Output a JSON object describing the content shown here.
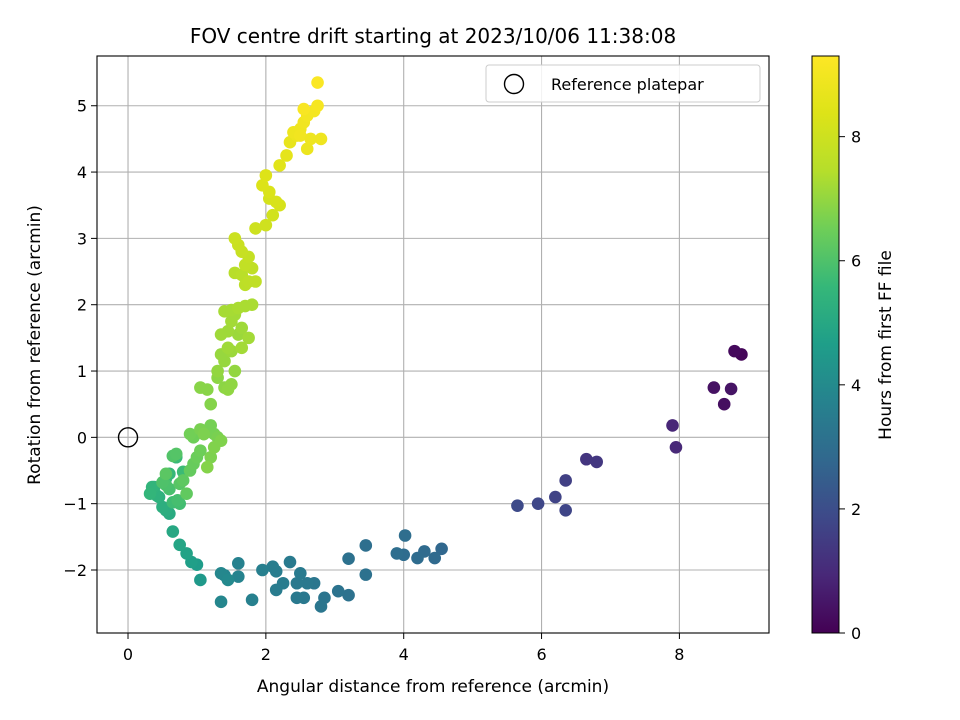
{
  "chart_data": {
    "type": "scatter",
    "title": "FOV centre drift starting at 2023/10/06 11:38:08",
    "xlabel": "Angular distance from reference (arcmin)",
    "ylabel": "Rotation from reference (arcmin)",
    "xlim": [
      -0.45,
      9.3
    ],
    "ylim": [
      -2.95,
      5.75
    ],
    "xticks": [
      0,
      2,
      4,
      6,
      8
    ],
    "yticks": [
      -2,
      -1,
      0,
      1,
      2,
      3,
      4,
      5
    ],
    "grid": true,
    "legend": {
      "placement": "top-right",
      "entries": [
        "Reference platepar"
      ]
    },
    "reference_point": {
      "x": 0,
      "y": 0,
      "label": "Reference platepar"
    },
    "colorbar": {
      "label": "Hours from first FF file",
      "range": [
        0,
        9.3
      ],
      "ticks": [
        0,
        2,
        4,
        6,
        8
      ],
      "colormap": "viridis"
    },
    "series": [
      {
        "x": [
          8.9,
          8.8,
          8.5,
          8.75,
          8.65,
          7.9,
          7.95,
          6.65,
          6.8,
          6.35,
          6.2,
          5.95,
          5.65,
          6.35,
          4.55,
          4.45,
          4.3,
          4.2,
          4.0,
          3.9,
          4.02,
          3.45,
          3.2,
          3.45,
          3.2,
          3.05,
          2.85,
          2.8,
          2.7,
          2.6,
          2.55,
          2.45,
          2.45,
          2.5,
          2.35,
          2.25,
          2.15,
          2.15,
          2.1,
          1.95,
          1.8,
          1.6,
          1.6,
          1.4,
          1.35,
          1.35,
          1.45,
          1.05,
          1.0,
          0.92,
          0.85,
          0.75,
          0.65,
          0.6,
          0.55,
          0.5,
          0.45,
          0.42,
          0.38,
          0.35,
          0.32,
          0.55,
          0.6,
          0.7,
          0.8,
          0.65,
          0.75,
          0.72,
          0.6,
          0.55,
          0.5,
          0.65,
          0.7,
          0.75,
          0.55,
          0.8,
          0.85,
          0.9,
          0.95,
          1.0,
          1.05,
          0.95,
          0.9,
          1.1,
          1.2,
          1.25,
          1.3,
          1.05,
          1.1,
          1.2,
          1.25,
          1.35,
          1.15,
          1.2,
          1.05,
          1.15,
          1.3,
          1.4,
          1.45,
          1.5,
          1.55,
          1.3,
          1.4,
          1.35,
          1.5,
          1.6,
          1.65,
          1.45,
          1.5,
          1.55,
          1.4,
          1.5,
          1.6,
          1.7,
          1.8,
          1.75,
          1.65,
          1.45,
          1.35,
          1.55,
          1.65,
          1.7,
          1.75,
          1.8,
          1.85,
          1.7,
          1.75,
          1.65,
          1.6,
          1.55,
          1.85,
          2.0,
          2.1,
          2.05,
          2.2,
          2.15,
          2.05,
          1.95,
          2.0,
          2.2,
          2.3,
          2.35,
          2.45,
          2.4,
          2.5,
          2.55,
          2.6,
          2.7,
          2.75,
          2.8,
          2.5,
          2.6,
          2.65,
          2.55,
          2.75
        ],
        "y": [
          1.25,
          1.3,
          0.75,
          0.73,
          0.5,
          0.18,
          -0.15,
          -0.33,
          -0.37,
          -0.65,
          -0.9,
          -1.0,
          -1.03,
          -1.1,
          -1.68,
          -1.82,
          -1.72,
          -1.82,
          -1.77,
          -1.75,
          -1.48,
          -1.63,
          -1.83,
          -2.07,
          -2.38,
          -2.32,
          -2.42,
          -2.55,
          -2.2,
          -2.2,
          -2.42,
          -2.42,
          -2.2,
          -2.05,
          -1.88,
          -2.2,
          -2.3,
          -2.02,
          -1.95,
          -2.0,
          -2.45,
          -1.9,
          -2.1,
          -2.08,
          -2.48,
          -2.05,
          -2.15,
          -2.15,
          -1.92,
          -1.88,
          -1.75,
          -1.62,
          -1.42,
          -1.15,
          -1.1,
          -1.05,
          -0.9,
          -0.88,
          -0.75,
          -0.75,
          -0.85,
          -0.62,
          -0.55,
          -0.3,
          -0.52,
          -0.98,
          -1.0,
          -0.95,
          -0.78,
          -0.72,
          -0.68,
          -0.28,
          -0.25,
          -0.7,
          -0.55,
          -0.65,
          -0.85,
          -0.5,
          -0.4,
          -0.3,
          -0.2,
          0.0,
          0.05,
          0.05,
          0.18,
          0.05,
          0.0,
          0.12,
          0.05,
          -0.3,
          -0.15,
          -0.05,
          -0.45,
          0.5,
          0.75,
          0.72,
          0.9,
          0.75,
          0.72,
          0.8,
          1.0,
          1.0,
          1.15,
          1.25,
          1.3,
          1.55,
          1.65,
          1.6,
          1.75,
          1.85,
          1.9,
          1.92,
          1.95,
          1.98,
          2.0,
          1.5,
          1.35,
          1.35,
          1.55,
          2.48,
          2.45,
          2.3,
          2.35,
          2.55,
          2.35,
          2.6,
          2.72,
          2.8,
          2.9,
          3.0,
          3.15,
          3.2,
          3.35,
          3.6,
          3.5,
          3.55,
          3.7,
          3.8,
          3.95,
          4.1,
          4.25,
          4.45,
          4.55,
          4.6,
          4.65,
          4.75,
          4.85,
          4.92,
          5.0,
          4.5,
          4.55,
          4.35,
          4.5,
          4.95,
          5.35
        ],
        "hours": [
          0.1,
          0.2,
          0.4,
          0.45,
          0.3,
          0.9,
          0.95,
          1.3,
          1.35,
          1.6,
          1.7,
          1.8,
          1.9,
          1.75,
          2.8,
          2.85,
          2.9,
          2.92,
          2.95,
          3.0,
          3.0,
          3.05,
          3.1,
          3.1,
          3.15,
          3.2,
          3.25,
          3.3,
          3.3,
          3.35,
          3.35,
          3.4,
          3.4,
          3.45,
          3.45,
          3.5,
          3.5,
          3.55,
          3.55,
          3.6,
          3.65,
          3.7,
          3.75,
          3.8,
          3.85,
          3.9,
          3.95,
          4.5,
          4.6,
          4.7,
          4.8,
          4.9,
          5.0,
          5.1,
          5.2,
          5.25,
          5.3,
          5.35,
          5.4,
          5.45,
          5.5,
          5.55,
          5.6,
          5.65,
          5.7,
          5.75,
          5.8,
          5.85,
          5.9,
          5.95,
          6.0,
          6.05,
          6.1,
          6.15,
          6.2,
          6.25,
          6.3,
          6.35,
          6.4,
          6.45,
          6.5,
          6.5,
          6.55,
          6.55,
          6.6,
          6.6,
          6.65,
          6.65,
          6.7,
          6.7,
          6.75,
          6.75,
          6.8,
          6.8,
          6.85,
          6.85,
          6.9,
          6.9,
          6.95,
          6.95,
          7.0,
          7.0,
          7.05,
          7.05,
          7.1,
          7.1,
          7.15,
          7.15,
          7.2,
          7.2,
          7.25,
          7.25,
          7.3,
          7.3,
          7.3,
          7.2,
          7.2,
          7.15,
          7.15,
          7.5,
          7.55,
          7.6,
          7.65,
          7.7,
          7.7,
          7.75,
          7.8,
          7.85,
          7.9,
          7.95,
          8.0,
          8.05,
          8.1,
          8.15,
          8.2,
          8.25,
          8.3,
          8.35,
          8.4,
          8.5,
          8.6,
          8.7,
          8.8,
          8.85,
          8.9,
          8.95,
          9.0,
          9.05,
          9.1,
          8.9,
          8.95,
          8.8,
          8.85,
          9.15,
          9.2
        ]
      }
    ]
  }
}
